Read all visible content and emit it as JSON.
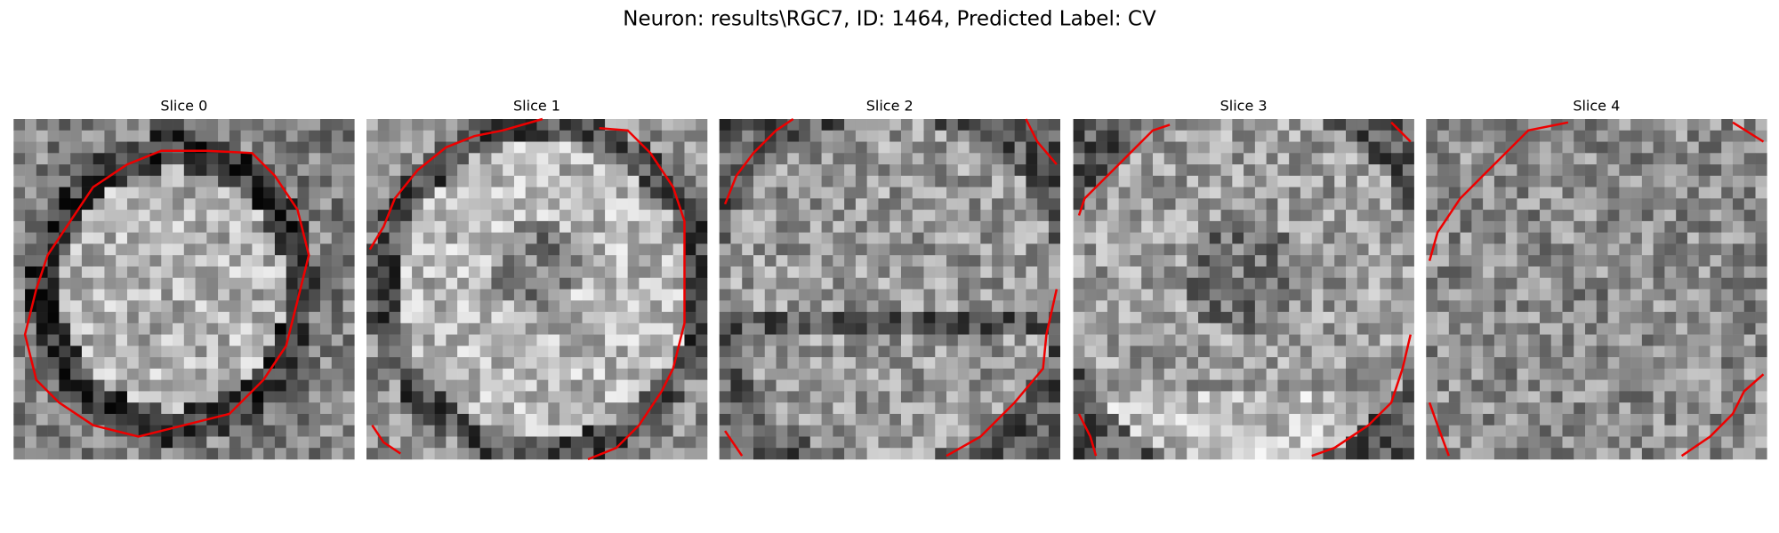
{
  "title": "Neuron: results\\RGC7, ID: 1464, Predicted Label: CV",
  "panels": [
    {
      "title": "Slice 0"
    },
    {
      "title": "Slice 1"
    },
    {
      "title": "Slice 2"
    },
    {
      "title": "Slice 3"
    },
    {
      "title": "Slice 4"
    }
  ]
}
